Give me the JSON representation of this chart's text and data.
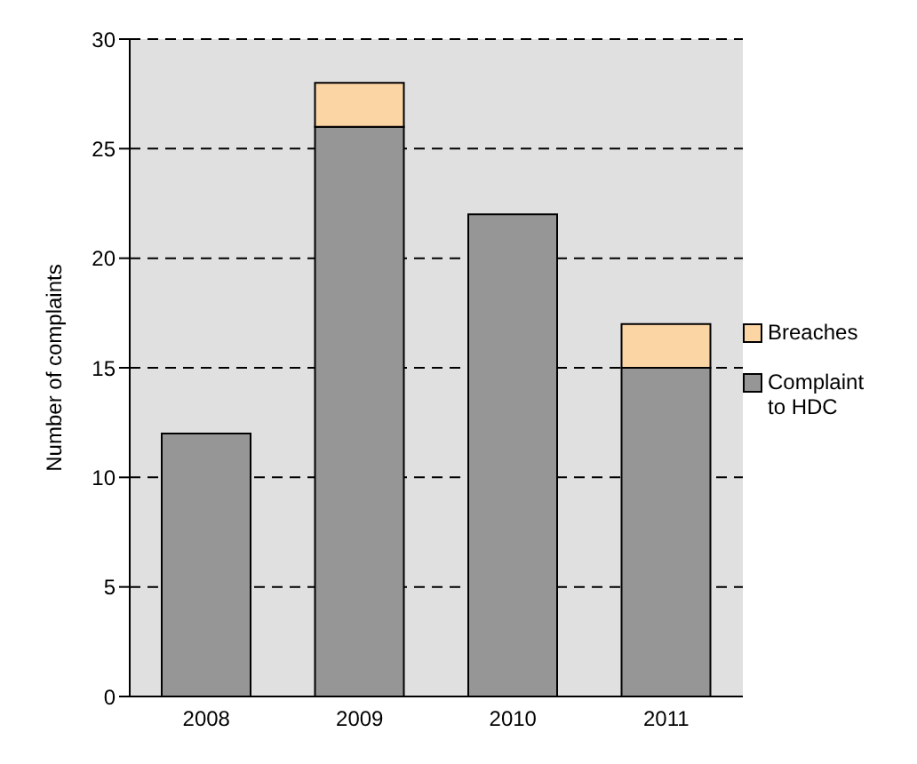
{
  "chart_data": {
    "type": "bar",
    "ylabel": "Number of complaints",
    "categories": [
      "2008",
      "2009",
      "2010",
      "2011"
    ],
    "stacked": true,
    "series": [
      {
        "name": "Complaint to HDC",
        "color": "#969696",
        "values": [
          12,
          26,
          22,
          15
        ]
      },
      {
        "name": "Breaches",
        "color": "#fcd5a5",
        "values": [
          0,
          2,
          0,
          2
        ]
      }
    ],
    "ylim": [
      0,
      30
    ],
    "yticks": [
      0,
      5,
      10,
      15,
      20,
      25,
      30
    ],
    "grid": "y",
    "legend": "right"
  }
}
